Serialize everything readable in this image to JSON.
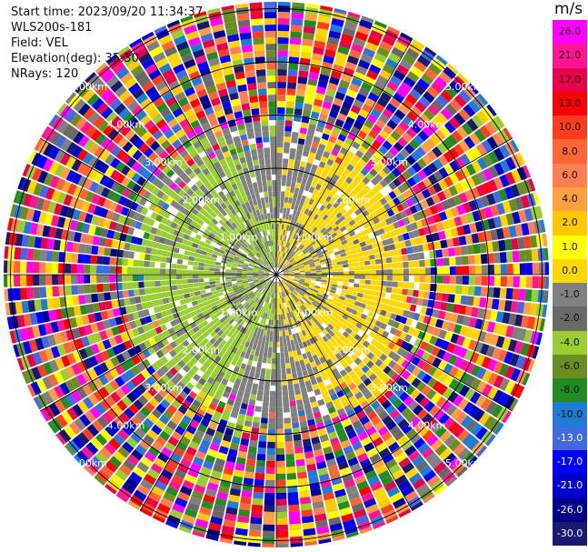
{
  "header": {
    "start_time": "Start time: 2023/09/20 11:34:37",
    "instrument": "WLS200s-181",
    "field": "Field: VEL",
    "elevation": "Elevation(deg): 35.30",
    "nrays": "NRays: 120"
  },
  "chart_data": {
    "type": "heatmap",
    "projection": "polar PPI",
    "nrays": 120,
    "ring_labels": [
      "1.00km",
      "2.00km",
      "3.00km",
      "4.00km",
      "5.00km"
    ],
    "ring_ranges_km": [
      1,
      2,
      3,
      4,
      5
    ],
    "colorbar": {
      "unit": "m/s",
      "ticks": [
        "26.0",
        "21.0",
        "17.0",
        "13.0",
        "10.0",
        "8.0",
        "6.0",
        "4.0",
        "2.0",
        "1.0",
        "0.0",
        "-1.0",
        "-2.0",
        "-4.0",
        "-6.0",
        "-8.0",
        "-10.0",
        "-13.0",
        "-17.0",
        "-21.0",
        "-26.0",
        "-30.0"
      ],
      "colors": [
        "#ff00ff",
        "#ff1493",
        "#e8004a",
        "#ff0000",
        "#ff3b20",
        "#ff6633",
        "#ff7f50",
        "#ff9f40",
        "#ffc800",
        "#ffff00",
        "#ffd700",
        "#808080",
        "#696969",
        "#9acd32",
        "#6b8e23",
        "#228b22",
        "#1e7bd6",
        "#4169e1",
        "#0000ff",
        "#0000cd",
        "#00008b",
        "#191970"
      ]
    },
    "near_field_pattern": "approaching (negative, green) on west half, receding (positive, yellow) on east half, noise beyond about 2.8 km"
  }
}
